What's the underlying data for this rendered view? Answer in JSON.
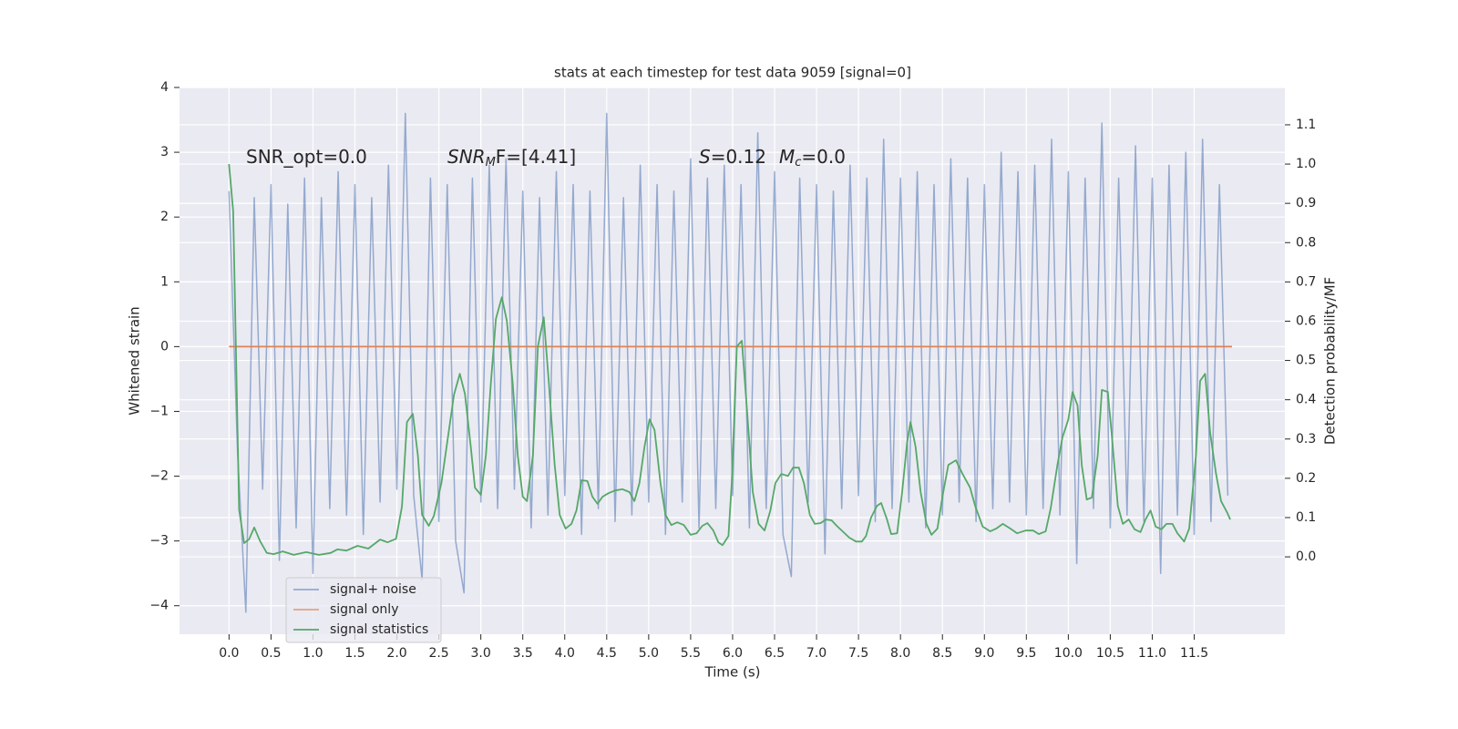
{
  "chart_data": {
    "type": "line",
    "title": "stats at each timestep for test data 9059 [signal=0]",
    "xlabel": "Time (s)",
    "ylabel": "Whitened strain",
    "y2label": "Detection probability/MF",
    "grid": true,
    "legend": "lower left",
    "xlim": [
      -0.59,
      12.58
    ],
    "ylim": [
      -4.44,
      4.0
    ],
    "y2lim": [
      -0.197,
      1.195
    ],
    "xticks": [
      {
        "value": 0,
        "label": "0.0"
      },
      0.5,
      {
        "value": 1,
        "label": "1.0"
      },
      1.5,
      {
        "value": 2,
        "label": "2.0"
      },
      2.5,
      {
        "value": 3,
        "label": "3.0"
      },
      3.5,
      {
        "value": 4,
        "label": "4.0"
      },
      4.5,
      {
        "value": 5,
        "label": "5.0"
      },
      5.5,
      {
        "value": 6,
        "label": "6.0"
      },
      6.5,
      {
        "value": 7,
        "label": "7.0"
      },
      7.5,
      {
        "value": 8,
        "label": "8.0"
      },
      8.5,
      {
        "value": 9,
        "label": "9.0"
      },
      9.5,
      {
        "value": 10,
        "label": "10.0"
      },
      10.5,
      {
        "value": 11,
        "label": "11.0"
      },
      11.5
    ],
    "yticks": [
      {
        "value": -4,
        "label": "−4"
      },
      {
        "value": -3,
        "label": "−3"
      },
      {
        "value": -2,
        "label": "−2"
      },
      {
        "value": -1,
        "label": "−1"
      },
      0,
      1,
      2,
      3,
      4
    ],
    "y2ticks": [
      {
        "value": 0,
        "label": "0.0"
      },
      0.1,
      0.2,
      0.3,
      0.4,
      0.5,
      0.6,
      0.7,
      0.8,
      0.9,
      {
        "value": 1,
        "label": "1.0"
      },
      1.1
    ],
    "annotations": [
      {
        "parts": [
          "SNR_opt=0.0"
        ]
      },
      {
        "parts": [
          "SNR",
          "M",
          "F=[4.41]"
        ]
      },
      {
        "parts": [
          "S",
          "=0.12",
          "M",
          "c",
          "=0.0"
        ]
      }
    ],
    "series": [
      {
        "name": "signal+ noise",
        "color": "#4c72b0",
        "x": [
          0.0,
          0.1,
          0.2,
          0.3,
          0.4,
          0.5,
          0.6,
          0.7,
          0.8,
          0.9,
          1.0,
          1.1,
          1.2,
          1.3,
          1.4,
          1.5,
          1.6,
          1.7,
          1.8,
          1.9,
          2.0,
          2.1,
          2.2,
          2.3,
          2.4,
          2.5,
          2.6,
          2.7,
          2.8,
          2.9,
          3.0,
          3.1,
          3.2,
          3.3,
          3.4,
          3.5,
          3.6,
          3.7,
          3.8,
          3.9,
          4.0,
          4.1,
          4.2,
          4.3,
          4.4,
          4.5,
          4.6,
          4.7,
          4.8,
          4.9,
          5.0,
          5.1,
          5.2,
          5.3,
          5.4,
          5.5,
          5.6,
          5.7,
          5.8,
          5.9,
          6.0,
          6.1,
          6.2,
          6.3,
          6.4,
          6.5,
          6.6,
          6.7,
          6.8,
          6.9,
          7.0,
          7.1,
          7.2,
          7.3,
          7.4,
          7.5,
          7.6,
          7.7,
          7.8,
          7.9,
          8.0,
          8.1,
          8.2,
          8.3,
          8.4,
          8.5,
          8.6,
          8.7,
          8.8,
          8.9,
          9.0,
          9.1,
          9.2,
          9.3,
          9.4,
          9.5,
          9.6,
          9.7,
          9.8,
          9.9,
          10.0,
          10.1,
          10.2,
          10.3,
          10.4,
          10.5,
          10.6,
          10.7,
          10.8,
          10.9,
          11.0,
          11.1,
          11.2,
          11.3,
          11.4,
          11.5,
          11.6,
          11.7,
          11.8,
          11.9
        ],
        "values": [
          2.4,
          -1.6,
          -4.1,
          2.3,
          -2.2,
          2.5,
          -3.3,
          2.2,
          -2.8,
          2.6,
          -3.5,
          2.3,
          -2.5,
          2.7,
          -2.6,
          2.5,
          -2.9,
          2.3,
          -2.4,
          2.8,
          -2.2,
          3.6,
          -2.3,
          -3.6,
          2.6,
          -2.7,
          2.5,
          -3.0,
          -3.8,
          2.6,
          -2.4,
          2.8,
          -2.5,
          2.9,
          -2.2,
          2.4,
          -2.8,
          2.3,
          -2.6,
          2.7,
          -2.3,
          2.5,
          -2.9,
          2.4,
          -2.5,
          3.6,
          -2.7,
          2.3,
          -2.6,
          2.8,
          -2.4,
          2.5,
          -2.9,
          2.4,
          -2.4,
          2.9,
          -2.8,
          2.6,
          -2.5,
          2.8,
          -2.3,
          2.5,
          -2.8,
          3.3,
          -2.5,
          2.7,
          -2.9,
          -3.55,
          2.6,
          -2.4,
          2.5,
          -3.2,
          2.4,
          -2.5,
          2.8,
          -2.3,
          2.6,
          -2.7,
          3.2,
          -2.5,
          2.6,
          -2.4,
          2.7,
          -2.8,
          2.5,
          -2.6,
          2.9,
          -2.4,
          2.6,
          -2.7,
          2.5,
          -2.5,
          3.0,
          -2.4,
          2.7,
          -2.6,
          2.8,
          -2.5,
          3.2,
          -2.6,
          2.7,
          -3.35,
          2.6,
          -2.5,
          3.45,
          -2.8,
          2.6,
          -2.6,
          3.1,
          -2.7,
          2.6,
          -3.5,
          2.8,
          -2.6,
          3.0,
          -2.9,
          3.2,
          -2.7,
          2.5,
          -2.3
        ]
      },
      {
        "name": "signal only",
        "color": "#dd8452",
        "x": [
          0,
          11.95
        ],
        "values": [
          0,
          0
        ]
      },
      {
        "name": "signal statistics",
        "color": "#55a868",
        "axis": "y2",
        "x": [
          0,
          0.05,
          0.12,
          0.18,
          0.24,
          0.3,
          0.37,
          0.45,
          0.53,
          0.64,
          0.77,
          0.92,
          1.07,
          1.21,
          1.29,
          1.4,
          1.53,
          1.66,
          1.8,
          1.89,
          1.99,
          2.06,
          2.12,
          2.19,
          2.25,
          2.3,
          2.38,
          2.44,
          2.53,
          2.62,
          2.68,
          2.75,
          2.81,
          2.88,
          2.93,
          3.0,
          3.06,
          3.12,
          3.18,
          3.25,
          3.31,
          3.38,
          3.44,
          3.5,
          3.55,
          3.62,
          3.68,
          3.75,
          3.81,
          3.88,
          3.94,
          4.01,
          4.08,
          4.14,
          4.2,
          4.27,
          4.33,
          4.39,
          4.45,
          4.52,
          4.6,
          4.69,
          4.77,
          4.83,
          4.89,
          4.95,
          5.01,
          5.07,
          5.14,
          5.2,
          5.27,
          5.34,
          5.42,
          5.5,
          5.57,
          5.64,
          5.7,
          5.77,
          5.83,
          5.88,
          5.95,
          5.99,
          6.05,
          6.11,
          6.18,
          6.24,
          6.31,
          6.38,
          6.45,
          6.51,
          6.58,
          6.66,
          6.72,
          6.79,
          6.85,
          6.92,
          6.98,
          7.05,
          7.11,
          7.18,
          7.24,
          7.32,
          7.39,
          7.47,
          7.54,
          7.59,
          7.65,
          7.72,
          7.77,
          7.84,
          7.89,
          7.96,
          8.02,
          8.08,
          8.12,
          8.18,
          8.24,
          8.31,
          8.37,
          8.44,
          8.5,
          8.57,
          8.66,
          8.74,
          8.83,
          8.89,
          8.98,
          9.07,
          9.14,
          9.22,
          9.31,
          9.39,
          9.49,
          9.58,
          9.65,
          9.73,
          9.79,
          9.87,
          9.93,
          10.0,
          10.05,
          10.11,
          10.16,
          10.22,
          10.28,
          10.35,
          10.4,
          10.47,
          10.52,
          10.59,
          10.65,
          10.72,
          10.79,
          10.86,
          10.92,
          10.98,
          11.04,
          11.11,
          11.17,
          11.24,
          11.3,
          11.38,
          11.44,
          11.52,
          11.57,
          11.63,
          11.69,
          11.76,
          11.82,
          11.89,
          11.93
        ],
        "values": [
          1.0,
          0.88,
          0.12,
          0.035,
          0.045,
          0.075,
          0.04,
          0.01,
          0.007,
          0.014,
          0.005,
          0.012,
          0.005,
          0.01,
          0.019,
          0.016,
          0.028,
          0.021,
          0.044,
          0.037,
          0.046,
          0.128,
          0.343,
          0.364,
          0.258,
          0.107,
          0.079,
          0.104,
          0.188,
          0.323,
          0.413,
          0.466,
          0.415,
          0.281,
          0.176,
          0.158,
          0.258,
          0.443,
          0.606,
          0.661,
          0.601,
          0.443,
          0.258,
          0.153,
          0.142,
          0.258,
          0.536,
          0.61,
          0.443,
          0.234,
          0.107,
          0.072,
          0.084,
          0.118,
          0.195,
          0.193,
          0.153,
          0.135,
          0.153,
          0.162,
          0.169,
          0.172,
          0.165,
          0.142,
          0.188,
          0.281,
          0.35,
          0.323,
          0.188,
          0.107,
          0.081,
          0.088,
          0.081,
          0.056,
          0.06,
          0.079,
          0.086,
          0.067,
          0.037,
          0.03,
          0.053,
          0.188,
          0.536,
          0.55,
          0.35,
          0.165,
          0.084,
          0.067,
          0.118,
          0.188,
          0.211,
          0.206,
          0.227,
          0.227,
          0.188,
          0.107,
          0.084,
          0.086,
          0.095,
          0.093,
          0.079,
          0.063,
          0.049,
          0.039,
          0.039,
          0.053,
          0.1,
          0.13,
          0.137,
          0.095,
          0.058,
          0.06,
          0.165,
          0.292,
          0.343,
          0.281,
          0.165,
          0.084,
          0.056,
          0.072,
          0.153,
          0.234,
          0.246,
          0.211,
          0.176,
          0.13,
          0.077,
          0.065,
          0.072,
          0.084,
          0.072,
          0.06,
          0.067,
          0.067,
          0.058,
          0.065,
          0.123,
          0.234,
          0.304,
          0.35,
          0.42,
          0.385,
          0.234,
          0.146,
          0.151,
          0.258,
          0.425,
          0.42,
          0.304,
          0.13,
          0.084,
          0.095,
          0.07,
          0.063,
          0.095,
          0.118,
          0.077,
          0.07,
          0.084,
          0.084,
          0.06,
          0.039,
          0.072,
          0.258,
          0.448,
          0.466,
          0.316,
          0.211,
          0.142,
          0.114,
          0.095
        ]
      }
    ]
  }
}
